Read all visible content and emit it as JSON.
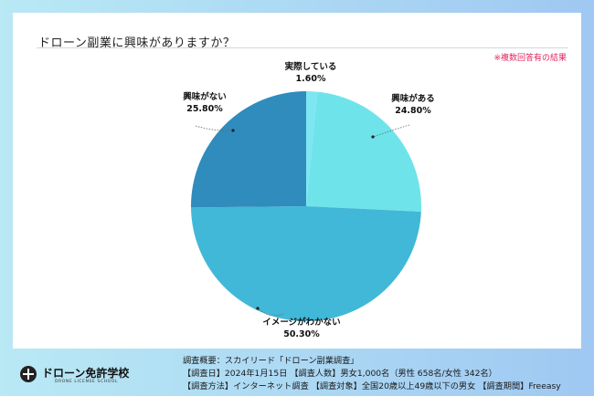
{
  "title": "ドローン副業に興味がありますか？",
  "note": "※複数回答有の結果",
  "chart_data": {
    "type": "pie",
    "title": "ドローン副業に興味がありますか？",
    "slices": [
      {
        "label": "実際している",
        "value": 1.6,
        "display": "1.60%",
        "color": "#7ee6f2"
      },
      {
        "label": "興味がある",
        "value": 24.8,
        "display": "24.80%",
        "color": "#6fe3ea"
      },
      {
        "label": "イメージがわかない",
        "value": 50.3,
        "display": "50.30%",
        "color": "#41b8d7"
      },
      {
        "label": "興味がない",
        "value": 25.8,
        "display": "25.80%",
        "color": "#2f8cbc"
      }
    ]
  },
  "footer": {
    "logo_name": "ドローン免許学校",
    "logo_sub": "DRONE LICENSE SCHOOL",
    "survey_lines": [
      "調査概要：スカイリード「ドローン副業調査」",
      "【調査日】2024年1月15日 【調査人数】男女1,000名（男性 658名/女性 342名）",
      "【調査方法】インターネット調査 【調査対象】全国20歳以上49歳以下の男女 【調査期間】Freeasy"
    ]
  }
}
